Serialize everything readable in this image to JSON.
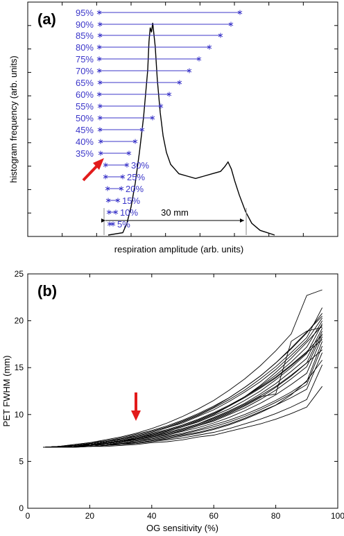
{
  "chart_data": [
    {
      "panel_label": "(a)",
      "type": "line",
      "xlabel": "respiration amplitude (arb. units)",
      "ylabel": "histogram frequency (arb. units)",
      "series": [
        {
          "values": [
            [
              -1.7,
              0.0
            ],
            [
              -1.35,
              0.01
            ],
            [
              -1.25,
              0.05
            ],
            [
              -1.15,
              0.12
            ],
            [
              -1.05,
              0.22
            ],
            [
              -0.95,
              0.35
            ],
            [
              -0.85,
              0.5
            ],
            [
              -0.8,
              0.6
            ],
            [
              -0.75,
              0.7
            ],
            [
              -0.72,
              0.82
            ],
            [
              -0.69,
              0.88
            ],
            [
              -0.66,
              0.86
            ],
            [
              -0.63,
              0.9
            ],
            [
              -0.6,
              0.85
            ],
            [
              -0.57,
              0.8
            ],
            [
              -0.52,
              0.66
            ],
            [
              -0.45,
              0.52
            ],
            [
              -0.38,
              0.42
            ],
            [
              -0.3,
              0.35
            ],
            [
              -0.2,
              0.3
            ],
            [
              -0.1,
              0.28
            ],
            [
              0.0,
              0.26
            ],
            [
              0.2,
              0.25
            ],
            [
              0.4,
              0.24
            ],
            [
              0.6,
              0.25
            ],
            [
              0.8,
              0.26
            ],
            [
              1.0,
              0.27
            ],
            [
              1.1,
              0.29
            ],
            [
              1.18,
              0.31
            ],
            [
              1.26,
              0.28
            ],
            [
              1.34,
              0.23
            ],
            [
              1.45,
              0.17
            ],
            [
              1.6,
              0.1
            ],
            [
              1.75,
              0.05
            ],
            [
              1.95,
              0.02
            ],
            [
              2.3,
              0.0
            ]
          ]
        }
      ],
      "percent_labels": [
        "95%",
        "90%",
        "85%",
        "80%",
        "75%",
        "70%",
        "65%",
        "60%",
        "55%",
        "50%",
        "45%",
        "40%",
        "35%",
        "30%",
        "25%",
        "20%",
        "15%",
        "10%",
        "5%"
      ],
      "interval_width_label": "30 mm"
    },
    {
      "panel_label": "(b)",
      "type": "line",
      "xlabel": "OG sensitivity (%)",
      "ylabel": "PET FWHM (mm)",
      "xlim": [
        0,
        100
      ],
      "ylim": [
        0,
        25
      ],
      "xticks": [
        "0",
        "20",
        "40",
        "60",
        "80",
        "100"
      ],
      "yticks": [
        "0",
        "5",
        "10",
        "15",
        "20",
        "25"
      ],
      "x": [
        5,
        10,
        15,
        20,
        25,
        30,
        35,
        40,
        45,
        50,
        55,
        60,
        65,
        70,
        75,
        80,
        85,
        90,
        95
      ],
      "series": [
        {
          "values": [
            6.5,
            6.6,
            6.7,
            6.8,
            7.0,
            7.2,
            7.5,
            7.8,
            8.2,
            8.7,
            9.3,
            10.0,
            10.9,
            11.9,
            13.1,
            14.5,
            16.0,
            17.7,
            19.5
          ]
        },
        {
          "values": [
            6.5,
            6.6,
            6.8,
            7.0,
            7.3,
            7.6,
            8.0,
            8.5,
            9.1,
            9.8,
            10.6,
            11.5,
            12.6,
            13.8,
            15.2,
            16.8,
            18.6,
            22.7,
            23.3
          ]
        },
        {
          "values": [
            6.5,
            6.6,
            6.7,
            6.9,
            7.1,
            7.4,
            7.7,
            8.1,
            8.6,
            9.2,
            9.9,
            10.7,
            11.6,
            12.6,
            13.8,
            15.1,
            16.6,
            18.2,
            21.4
          ]
        },
        {
          "values": [
            6.5,
            6.6,
            6.8,
            7.0,
            7.2,
            7.5,
            7.9,
            8.3,
            8.8,
            9.4,
            10.1,
            10.9,
            11.8,
            12.9,
            14.1,
            15.5,
            17.0,
            18.7,
            20.8
          ]
        },
        {
          "values": [
            6.5,
            6.6,
            6.7,
            6.9,
            7.1,
            7.4,
            7.7,
            8.1,
            8.6,
            9.1,
            9.8,
            10.5,
            11.4,
            12.4,
            13.5,
            14.8,
            16.3,
            17.9,
            20.3
          ]
        },
        {
          "values": [
            6.5,
            6.6,
            6.7,
            6.8,
            7.0,
            7.2,
            7.5,
            7.9,
            8.3,
            8.8,
            9.4,
            10.1,
            10.9,
            11.9,
            13.0,
            14.2,
            15.6,
            17.2,
            20.0
          ]
        },
        {
          "values": [
            6.5,
            6.6,
            6.7,
            6.8,
            7.0,
            7.2,
            7.5,
            7.8,
            8.2,
            8.7,
            9.2,
            9.9,
            10.6,
            11.5,
            12.5,
            13.7,
            15.0,
            16.5,
            19.7
          ]
        },
        {
          "values": [
            6.5,
            6.6,
            6.7,
            6.8,
            6.9,
            7.1,
            7.4,
            7.7,
            8.1,
            8.5,
            9.0,
            9.7,
            10.4,
            11.2,
            12.2,
            13.3,
            14.6,
            16.0,
            19.2
          ]
        },
        {
          "values": [
            6.5,
            6.5,
            6.6,
            6.8,
            6.9,
            7.1,
            7.3,
            7.6,
            7.9,
            8.3,
            8.8,
            9.4,
            10.1,
            10.9,
            11.8,
            12.9,
            14.1,
            15.5,
            18.9
          ]
        },
        {
          "values": [
            6.5,
            6.5,
            6.6,
            6.7,
            6.9,
            7.1,
            7.3,
            7.6,
            7.9,
            8.3,
            8.8,
            9.3,
            10.0,
            10.7,
            11.6,
            12.6,
            13.8,
            15.1,
            18.6
          ]
        },
        {
          "values": [
            6.5,
            6.5,
            6.6,
            6.7,
            6.8,
            7.0,
            7.2,
            7.5,
            7.8,
            8.2,
            8.6,
            9.1,
            9.7,
            10.4,
            11.2,
            12.1,
            13.2,
            14.4,
            18.3
          ]
        },
        {
          "values": [
            6.5,
            6.5,
            6.6,
            6.7,
            6.8,
            7.0,
            7.2,
            7.4,
            7.7,
            8.0,
            8.4,
            8.9,
            9.4,
            10.0,
            10.7,
            11.5,
            12.4,
            13.5,
            17.8
          ]
        },
        {
          "values": [
            6.5,
            6.5,
            6.6,
            6.7,
            6.8,
            6.9,
            7.1,
            7.3,
            7.6,
            7.9,
            8.3,
            8.7,
            9.2,
            9.8,
            10.5,
            11.3,
            12.2,
            13.2,
            17.3
          ]
        },
        {
          "values": [
            6.5,
            6.5,
            6.6,
            6.6,
            6.7,
            6.9,
            7.0,
            7.2,
            7.5,
            7.8,
            8.1,
            8.5,
            9.0,
            9.6,
            10.3,
            11.0,
            11.8,
            12.7,
            16.6
          ]
        },
        {
          "values": [
            6.5,
            6.5,
            6.6,
            6.6,
            6.7,
            6.8,
            7.0,
            7.2,
            7.4,
            7.7,
            8.0,
            8.4,
            8.9,
            9.5,
            10.2,
            11.0,
            12.1,
            13.6,
            15.8
          ]
        },
        {
          "values": [
            6.5,
            6.5,
            6.5,
            6.6,
            6.7,
            6.8,
            6.9,
            7.1,
            7.3,
            7.5,
            7.8,
            8.1,
            8.5,
            9.0,
            9.5,
            10.1,
            10.8,
            11.6,
            15.3
          ]
        },
        {
          "values": [
            6.5,
            6.5,
            6.5,
            6.6,
            6.6,
            6.7,
            6.8,
            7.0,
            7.1,
            7.3,
            7.6,
            7.8,
            8.2,
            8.6,
            9.0,
            9.5,
            10.1,
            10.8,
            13.0
          ]
        },
        {
          "values": [
            6.5,
            6.6,
            6.7,
            6.9,
            7.1,
            7.3,
            7.6,
            8.0,
            8.4,
            8.9,
            9.5,
            10.2,
            11.0,
            11.9,
            12.9,
            14.0,
            15.3,
            16.7,
            18.5
          ]
        },
        {
          "values": [
            6.5,
            6.6,
            6.7,
            6.9,
            7.1,
            7.4,
            7.8,
            8.2,
            8.7,
            9.3,
            10.0,
            10.8,
            11.8,
            12.9,
            14.1,
            15.5,
            17.1,
            18.8,
            20.5
          ]
        },
        {
          "values": [
            6.5,
            6.6,
            6.7,
            6.8,
            7.0,
            7.2,
            7.5,
            7.9,
            8.3,
            8.8,
            9.4,
            10.1,
            10.9,
            11.8,
            12.8,
            13.9,
            15.2,
            16.6,
            18.0
          ]
        },
        {
          "values": [
            6.5,
            6.6,
            6.7,
            6.8,
            7.0,
            7.2,
            7.4,
            7.7,
            8.1,
            8.5,
            9.0,
            9.6,
            10.3,
            11.1,
            12.0,
            13.0,
            14.2,
            15.5,
            16.9
          ]
        },
        {
          "values": [
            6.5,
            6.6,
            6.7,
            6.8,
            6.9,
            7.1,
            7.4,
            7.7,
            8.0,
            8.4,
            8.9,
            9.5,
            10.2,
            11.0,
            11.9,
            12.2,
            17.8,
            18.9,
            19.3
          ]
        }
      ],
      "annotation_arrow_x": 35
    }
  ],
  "colors": {
    "axis": "#000000",
    "curve": "#000000",
    "percent_interval": "#3b36c9",
    "arrow": "#e21b1b"
  }
}
